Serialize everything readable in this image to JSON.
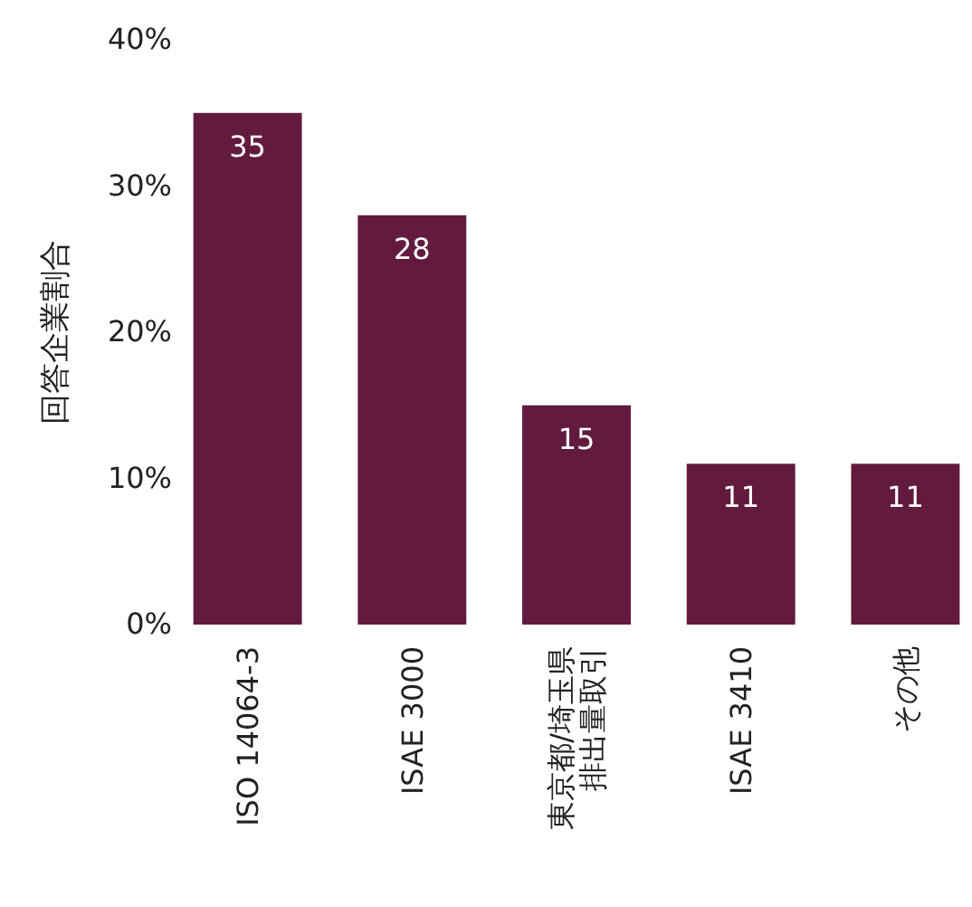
{
  "chart_data": {
    "type": "bar",
    "ylabel": "回答企業割合",
    "categories": [
      "ISO 14064-3",
      "ISAE 3000",
      "東京都/埼玉県排出量取引",
      "ISAE 3410",
      "その他"
    ],
    "values": [
      35,
      28,
      15,
      11,
      11
    ],
    "data_labels": true,
    "color": "#621b3f",
    "ylim": [
      0,
      40
    ],
    "yticks": [
      {
        "value": 0,
        "label": "0%"
      },
      {
        "value": 10,
        "label": "10%"
      },
      {
        "value": 20,
        "label": "20%"
      },
      {
        "value": 30,
        "label": "30%"
      },
      {
        "value": 40,
        "label": "40%"
      }
    ],
    "grid": false
  }
}
